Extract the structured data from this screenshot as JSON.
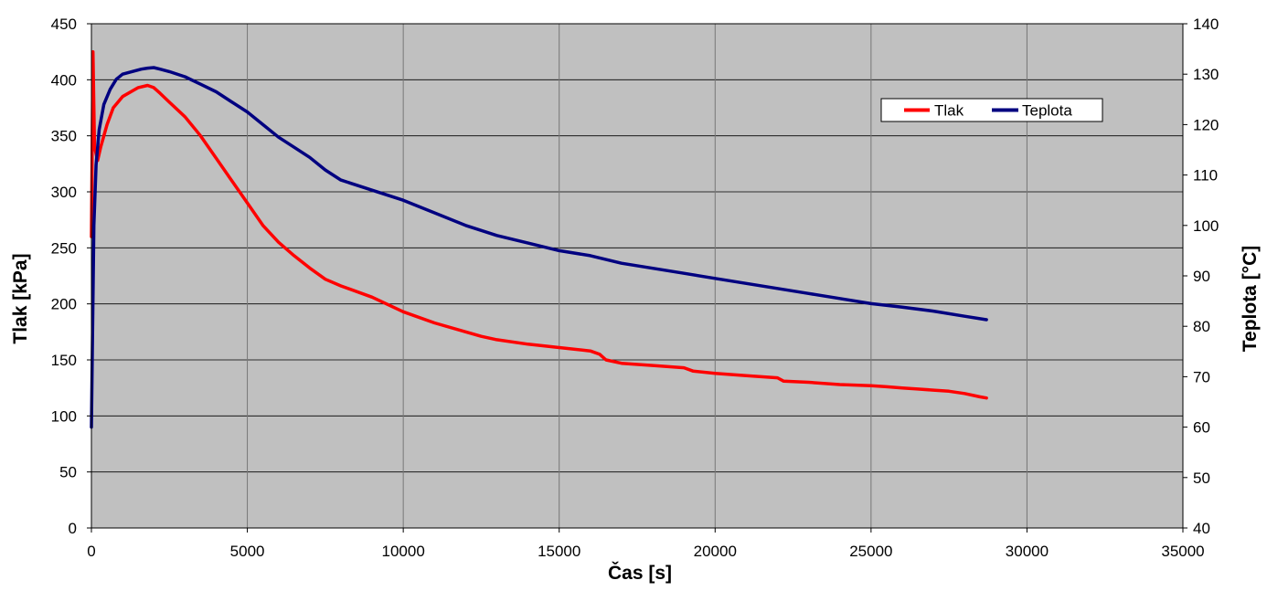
{
  "chart_data": {
    "type": "line",
    "title": "",
    "xlabel": "Čas [s]",
    "ylabel": "Tlak [kPa]",
    "y2label": "Teplota [°C]",
    "xlim": [
      0,
      35000
    ],
    "ylim": [
      0,
      450
    ],
    "y2lim": [
      40,
      140
    ],
    "xticks": [
      "0",
      "5000",
      "10000",
      "15000",
      "20000",
      "25000",
      "30000",
      "35000"
    ],
    "yticks": [
      "0",
      "50",
      "100",
      "150",
      "200",
      "250",
      "300",
      "350",
      "400",
      "450"
    ],
    "y2ticks": [
      "40",
      "50",
      "60",
      "70",
      "80",
      "90",
      "100",
      "110",
      "120",
      "130",
      "140"
    ],
    "grid": true,
    "plot_background": "#c0c0c0",
    "legend_position": "top-right",
    "series": [
      {
        "name": "Tlak",
        "axis": "left",
        "color": "#ff0000",
        "x": [
          0,
          50,
          100,
          200,
          300,
          500,
          700,
          1000,
          1500,
          1800,
          2000,
          2200,
          2500,
          3000,
          3500,
          4000,
          4500,
          5000,
          5500,
          6000,
          6500,
          7000,
          7500,
          8000,
          9000,
          10000,
          11000,
          12000,
          12500,
          13000,
          14000,
          15000,
          16000,
          16300,
          16500,
          17000,
          18000,
          19000,
          19300,
          20000,
          21000,
          22000,
          22200,
          23000,
          24000,
          25000,
          25500,
          26000,
          26500,
          27000,
          27500,
          28000,
          28500,
          28700
        ],
        "y": [
          260,
          425,
          340,
          328,
          340,
          360,
          375,
          385,
          393,
          395,
          393,
          388,
          380,
          367,
          350,
          330,
          310,
          290,
          270,
          255,
          243,
          232,
          222,
          216,
          206,
          193,
          183,
          175,
          171,
          168,
          164,
          161,
          158,
          155,
          150,
          147,
          145,
          143,
          140,
          138,
          136,
          134,
          131,
          130,
          128,
          127,
          126,
          125,
          124,
          123,
          122,
          120,
          117,
          116
        ]
      },
      {
        "name": "Teplota",
        "axis": "right",
        "color": "#000080",
        "x": [
          0,
          30,
          80,
          150,
          250,
          400,
          600,
          800,
          1000,
          1300,
          1600,
          1800,
          2000,
          2200,
          2500,
          3000,
          3500,
          4000,
          4500,
          5000,
          5500,
          6000,
          6500,
          7000,
          7500,
          8000,
          9000,
          10000,
          11000,
          12000,
          13000,
          14000,
          15000,
          16000,
          17000,
          18000,
          19000,
          20000,
          21000,
          22000,
          23000,
          24000,
          25000,
          26000,
          27000,
          28000,
          28700
        ],
        "y": [
          60,
          75,
          100,
          112,
          119,
          124,
          127,
          129,
          130,
          130.5,
          131,
          131.2,
          131.3,
          131,
          130.5,
          129.5,
          128,
          126.5,
          124.5,
          122.5,
          120,
          117.5,
          115.5,
          113.5,
          111,
          109,
          107,
          105,
          102.5,
          100,
          98,
          96.5,
          95,
          94,
          92.5,
          91.5,
          90.5,
          89.5,
          88.5,
          87.5,
          86.5,
          85.5,
          84.5,
          83.8,
          83,
          82,
          81.3
        ]
      }
    ]
  }
}
